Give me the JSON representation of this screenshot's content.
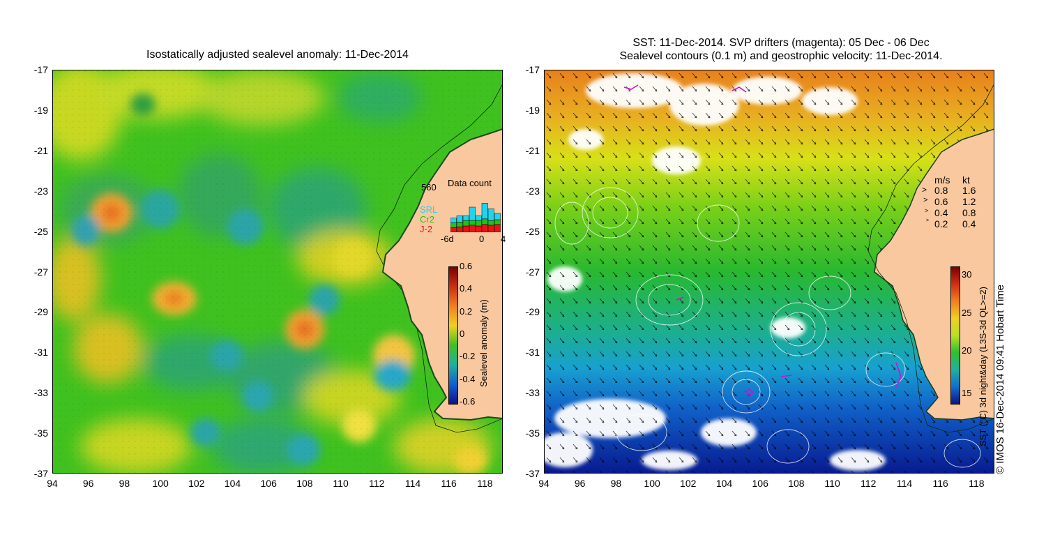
{
  "left_panel": {
    "title": "Isostatically adjusted sealevel anomaly: 11-Dec-2014",
    "colorbar": {
      "label": "Sealevel anomaly (m)",
      "ticks": [
        "0.6",
        "0.4",
        "0.2",
        "0",
        "-0.2",
        "-0.4",
        "-0.6"
      ],
      "range": [
        -0.6,
        0.6
      ]
    },
    "inset": {
      "title": "Data count",
      "max_label": "560",
      "x_labels": [
        "-6d",
        "0",
        "4"
      ],
      "series": [
        {
          "name": "SRL",
          "color": "#22d3ee"
        },
        {
          "name": "Cr2",
          "color": "#22c21a"
        },
        {
          "name": "J-2",
          "color": "#ee1111"
        }
      ],
      "bars": [
        [
          {
            "series": "J-2",
            "value": 60
          },
          {
            "series": "Cr2",
            "value": 60
          },
          {
            "series": "SRL",
            "value": 60
          }
        ],
        [
          {
            "series": "J-2",
            "value": 70
          },
          {
            "series": "Cr2",
            "value": 60
          },
          {
            "series": "SRL",
            "value": 80
          }
        ],
        [
          {
            "series": "J-2",
            "value": 80
          },
          {
            "series": "Cr2",
            "value": 70
          },
          {
            "series": "SRL",
            "value": 60
          }
        ],
        [
          {
            "series": "J-2",
            "value": 90
          },
          {
            "series": "Cr2",
            "value": 60
          },
          {
            "series": "SRL",
            "value": 170
          }
        ],
        [
          {
            "series": "J-2",
            "value": 80
          },
          {
            "series": "Cr2",
            "value": 70
          },
          {
            "series": "SRL",
            "value": 60
          }
        ],
        [
          {
            "series": "J-2",
            "value": 100
          },
          {
            "series": "Cr2",
            "value": 70
          },
          {
            "series": "SRL",
            "value": 200
          }
        ],
        [
          {
            "series": "J-2",
            "value": 90
          },
          {
            "series": "Cr2",
            "value": 60
          },
          {
            "series": "SRL",
            "value": 150
          }
        ],
        [
          {
            "series": "J-2",
            "value": 100
          },
          {
            "series": "Cr2",
            "value": 60
          },
          {
            "series": "SRL",
            "value": 80
          }
        ]
      ]
    }
  },
  "right_panel": {
    "title_line1": "SST: 11-Dec-2014. SVP drifters (magenta): 05 Dec - 06 Dec",
    "title_line2": "Sealevel contours (0.1 m) and geostrophic velocity: 11-Dec-2014.",
    "colorbar": {
      "label": "SST (°C) 3d night&day (L3S-3d QL>=2)",
      "ticks": [
        "30",
        "25",
        "20",
        "15"
      ],
      "range": [
        13,
        31
      ]
    },
    "velocity_legend": {
      "units": [
        "m/s",
        "kt"
      ],
      "rows": [
        [
          "0.8",
          "1.6"
        ],
        [
          "0.6",
          "1.2"
        ],
        [
          "0.4",
          "0.8"
        ],
        [
          "0.2",
          "0.4"
        ]
      ]
    },
    "credit": "© IMOS 16-Dec-2014 09:41 Hobart Time"
  },
  "axes": {
    "y_labels": [
      "-17",
      "-19",
      "-21",
      "-23",
      "-25",
      "-27",
      "-29",
      "-31",
      "-33",
      "-35",
      "-37"
    ],
    "x_labels": [
      "94",
      "96",
      "98",
      "100",
      "102",
      "104",
      "106",
      "108",
      "110",
      "112",
      "114",
      "116",
      "118"
    ]
  },
  "colors": {
    "land": "#f9c89f",
    "sla_background": "#3fc11f"
  }
}
